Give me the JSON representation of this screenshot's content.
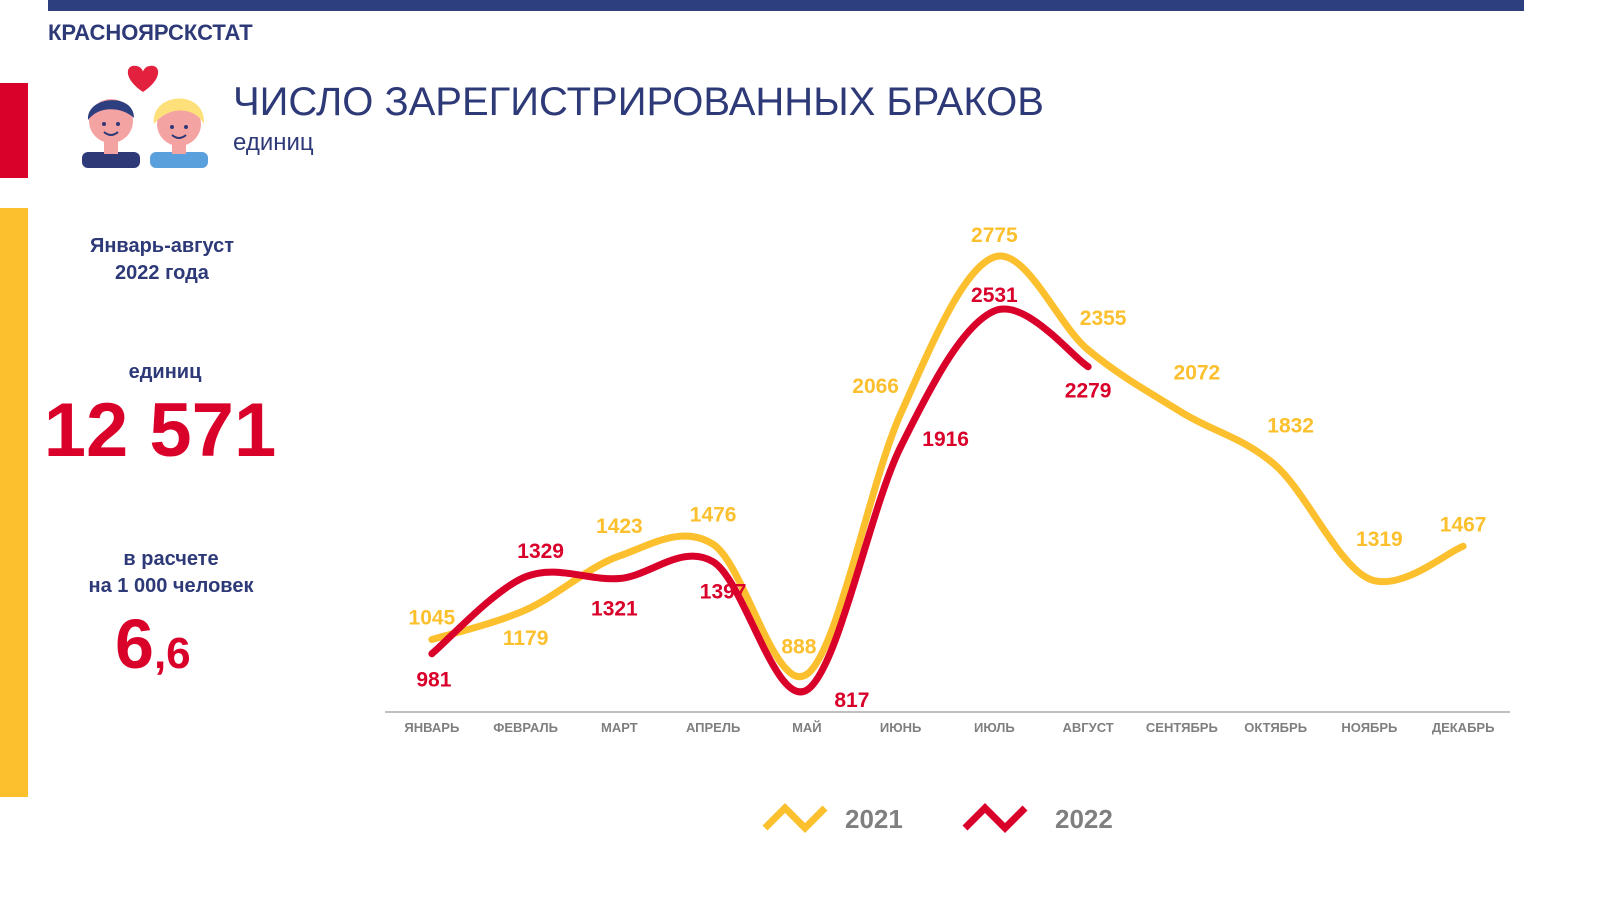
{
  "header": {
    "brand": "КРАСНОЯРСКСТАТ",
    "title": "ЧИСЛО ЗАРЕГИСТРИРОВАННЫХ БРАКОВ",
    "subtitle": "единиц"
  },
  "side": {
    "period": [
      "Январь-август",
      "2022 года"
    ],
    "units_label": "единиц",
    "total": "12 571",
    "rate_label": [
      "в расчете",
      "на 1 000 человек"
    ],
    "rate_whole": "6",
    "rate_fraction": ",6"
  },
  "chart_data": {
    "type": "line",
    "categories": [
      "ЯНВАРЬ",
      "ФЕВРАЛЬ",
      "МАРТ",
      "АПРЕЛЬ",
      "МАЙ",
      "ИЮНЬ",
      "ИЮЛЬ",
      "АВГУСТ",
      "СЕНТЯБРЬ",
      "ОКТЯБРЬ",
      "НОЯБРЬ",
      "ДЕКАБРЬ"
    ],
    "series": [
      {
        "name": "2021",
        "color": "#fcc02e",
        "values": [
          1045,
          1179,
          1423,
          1476,
          888,
          2066,
          2775,
          2355,
          2072,
          1832,
          1319,
          1467
        ]
      },
      {
        "name": "2022",
        "color": "#d9002a",
        "values": [
          981,
          1329,
          1321,
          1397,
          817,
          1916,
          2531,
          2279,
          null,
          null,
          null,
          null
        ]
      }
    ]
  }
}
